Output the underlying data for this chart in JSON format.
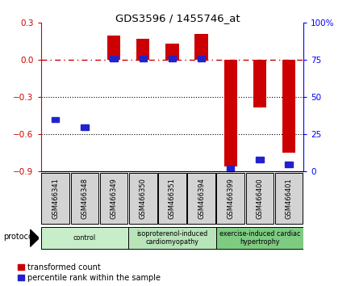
{
  "title": "GDS3596 / 1455746_at",
  "samples": [
    "GSM466341",
    "GSM466348",
    "GSM466349",
    "GSM466350",
    "GSM466351",
    "GSM466394",
    "GSM466399",
    "GSM466400",
    "GSM466401"
  ],
  "red_values": [
    0.005,
    0.005,
    0.2,
    0.17,
    0.13,
    0.21,
    -0.86,
    -0.38,
    -0.75
  ],
  "blue_percentile": [
    35,
    30,
    76,
    76,
    76,
    76,
    2,
    8,
    5
  ],
  "ylim_left": [
    -0.9,
    0.3
  ],
  "ylim_right": [
    0,
    100
  ],
  "yticks_left": [
    -0.9,
    -0.6,
    -0.3,
    0.0,
    0.3
  ],
  "yticks_right": [
    0,
    25,
    50,
    75,
    100
  ],
  "groups": [
    {
      "label": "control",
      "start": 0,
      "end": 3,
      "color": "#c8edc9"
    },
    {
      "label": "isoproterenol-induced\ncardiomyopathy",
      "start": 3,
      "end": 6,
      "color": "#b8e4b9"
    },
    {
      "label": "exercise-induced cardiac\nhypertrophy",
      "start": 6,
      "end": 9,
      "color": "#7ecb82"
    }
  ],
  "red_color": "#cc0000",
  "blue_color": "#2222cc",
  "bar_width": 0.45,
  "legend_red_label": "transformed count",
  "legend_blue_label": "percentile rank within the sample",
  "protocol_label": "protocol"
}
